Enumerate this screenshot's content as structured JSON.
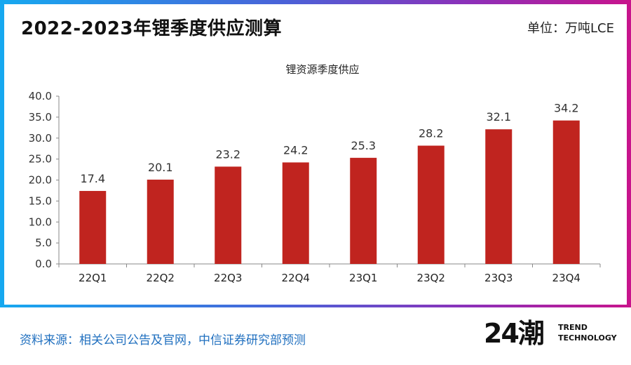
{
  "header": {
    "title": "2022-2023年锂季度供应测算",
    "unit": "单位：万吨LCE"
  },
  "footer": {
    "source": "资料来源：相关公司公告及官网，中信证券研究部预测",
    "logo_mark": "24潮",
    "logo_line1": "TREND",
    "logo_line2": "TECHNOLOGY"
  },
  "chart_data": {
    "type": "bar",
    "title": "锂资源季度供应",
    "categories": [
      "22Q1",
      "22Q2",
      "22Q3",
      "22Q4",
      "23Q1",
      "23Q2",
      "23Q3",
      "23Q4"
    ],
    "values": [
      17.4,
      20.1,
      23.2,
      24.2,
      25.3,
      28.2,
      32.1,
      34.2
    ],
    "value_labels": [
      "17.4",
      "20.1",
      "23.2",
      "24.2",
      "25.3",
      "28.2",
      "32.1",
      "34.2"
    ],
    "ylim": [
      0,
      40
    ],
    "yticks": [
      "0.0",
      "5.0",
      "10.0",
      "15.0",
      "20.0",
      "25.0",
      "30.0",
      "35.0",
      "40.0"
    ],
    "xlabel": "",
    "ylabel": "",
    "grid": false,
    "bar_color": "#c0241f"
  }
}
